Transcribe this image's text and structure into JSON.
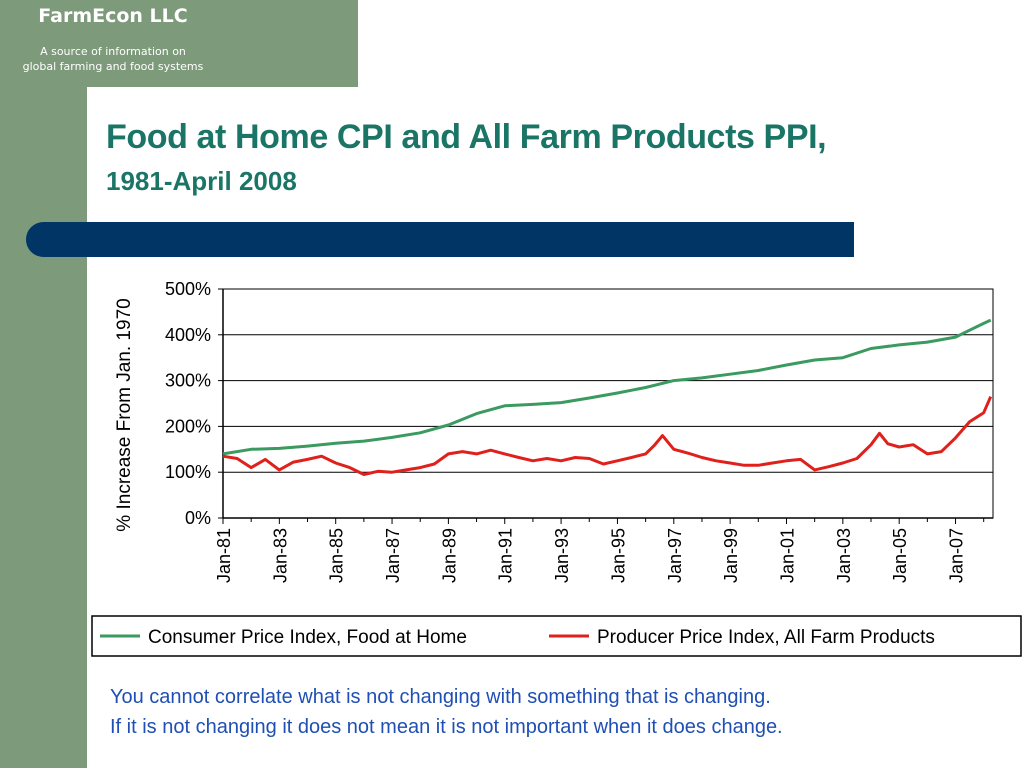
{
  "brand": {
    "name": "FarmEcon LLC",
    "tagline_line1": "A source of information on",
    "tagline_line2": "global farming and food systems"
  },
  "slide": {
    "title": "Food at Home CPI and All Farm Products PPI,",
    "subtitle": "1981-April 2008",
    "note_line1": "You cannot correlate what is not changing with something that is changing.",
    "note_line2": "If it is not changing it does not mean it is not important when it does change."
  },
  "colors": {
    "sidebar": "#7d9a7a",
    "title": "#1a7566",
    "navy_bar": "#003565",
    "note_text": "#1f4fb4",
    "cpi_series": "#3a9a5f",
    "ppi_series": "#e0201b"
  },
  "chart_data": {
    "type": "line",
    "title": "",
    "xlabel": "",
    "ylabel": "% Increase From Jan. 1970",
    "ylim": [
      0,
      500
    ],
    "yticks": [
      "0%",
      "100%",
      "200%",
      "300%",
      "400%",
      "500%"
    ],
    "ytick_values": [
      0,
      100,
      200,
      300,
      400,
      500
    ],
    "xticks": [
      "Jan-81",
      "Jan-83",
      "Jan-85",
      "Jan-87",
      "Jan-89",
      "Jan-91",
      "Jan-93",
      "Jan-95",
      "Jan-97",
      "Jan-99",
      "Jan-01",
      "Jan-03",
      "Jan-05",
      "Jan-07"
    ],
    "xtick_years": [
      1981,
      1983,
      1985,
      1987,
      1989,
      1991,
      1993,
      1995,
      1997,
      1999,
      2001,
      2003,
      2005,
      2007
    ],
    "xlim": [
      1981,
      2008.33
    ],
    "grid": "horizontal",
    "legend": "bottom",
    "series": [
      {
        "name": "Consumer Price Index, Food at Home",
        "color": "#3a9a5f",
        "x": [
          1981,
          1982,
          1983,
          1984,
          1985,
          1986,
          1987,
          1988,
          1989,
          1990,
          1991,
          1992,
          1993,
          1994,
          1995,
          1996,
          1997,
          1998,
          1999,
          2000,
          2001,
          2002,
          2003,
          2004,
          2005,
          2006,
          2007,
          2007.5,
          2008,
          2008.25
        ],
        "y": [
          140,
          150,
          152,
          157,
          163,
          168,
          176,
          186,
          203,
          228,
          245,
          248,
          252,
          262,
          273,
          285,
          300,
          306,
          314,
          322,
          334,
          345,
          350,
          370,
          378,
          384,
          395,
          410,
          425,
          432
        ]
      },
      {
        "name": "Producer Price Index, All Farm Products",
        "color": "#e0201b",
        "x": [
          1981,
          1981.5,
          1982,
          1982.5,
          1983,
          1983.5,
          1984,
          1984.5,
          1985,
          1985.5,
          1986,
          1986.5,
          1987,
          1987.5,
          1988,
          1988.5,
          1989,
          1989.5,
          1990,
          1990.5,
          1991,
          1991.5,
          1992,
          1992.5,
          1993,
          1993.5,
          1994,
          1994.5,
          1995,
          1995.5,
          1996,
          1996.3,
          1996.6,
          1997,
          1997.3,
          1997.6,
          1998,
          1998.5,
          1999,
          1999.5,
          2000,
          2000.5,
          2001,
          2001.5,
          2002,
          2002.5,
          2003,
          2003.5,
          2004,
          2004.3,
          2004.6,
          2005,
          2005.5,
          2006,
          2006.5,
          2007,
          2007.5,
          2008,
          2008.25
        ],
        "y": [
          135,
          130,
          110,
          128,
          105,
          122,
          128,
          135,
          120,
          110,
          95,
          102,
          100,
          105,
          110,
          118,
          140,
          145,
          140,
          148,
          140,
          132,
          125,
          130,
          125,
          132,
          130,
          118,
          125,
          132,
          140,
          158,
          180,
          150,
          145,
          140,
          132,
          125,
          120,
          115,
          115,
          120,
          125,
          128,
          105,
          112,
          120,
          130,
          160,
          185,
          162,
          155,
          160,
          140,
          145,
          175,
          210,
          230,
          265
        ]
      }
    ]
  }
}
